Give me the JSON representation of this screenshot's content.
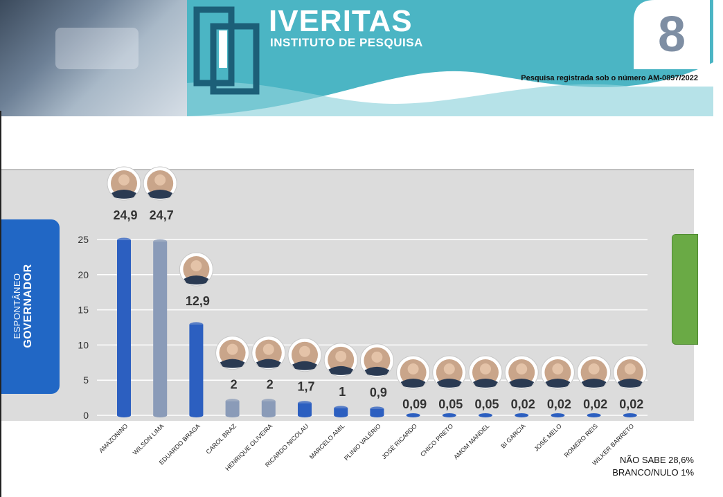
{
  "header": {
    "logo_title": "IVERITAS",
    "logo_subtitle": "INSTITUTO DE PESQUISA",
    "page_number": "8",
    "registration": "Pesquisa registrada sob o número AM-0897/2022",
    "colors": {
      "teal": "#4bb5c4",
      "dark_teal": "#1c5f78",
      "number": "#7e8ea3"
    }
  },
  "side_tab": {
    "line1": "ESPONTÂNEO",
    "line2": "GOVERNADOR",
    "color": "#2167c5"
  },
  "notes": {
    "nao_sabe": "NÃO SABE 28,6%",
    "branco_nulo": "BRANCO/NULO 1%"
  },
  "chart_data": {
    "type": "bar",
    "title": "",
    "xlabel": "",
    "ylabel": "",
    "ylim": [
      0,
      25
    ],
    "yticks": [
      "0",
      "5",
      "10",
      "15",
      "20",
      "25"
    ],
    "categories": [
      "AMAZONINO",
      "WILSON LIMA",
      "EDUARDO BRAGA",
      "CAROL BRAZ",
      "HENRIQUE OLIVEIRA",
      "RICARDO NICOLAU",
      "MARCELO AMIL",
      "PLINIO VALÉRIO",
      "JOSÉ RICARDO",
      "CHICO PRETO",
      "AMOM MANDEL",
      "BI GARCIA",
      "JOSÉ MELO",
      "ROMERO REIS",
      "WILKER BARRETO"
    ],
    "values": [
      24.9,
      24.7,
      12.9,
      2,
      2,
      1.7,
      1,
      0.9,
      0.09,
      0.05,
      0.05,
      0.02,
      0.02,
      0.02,
      0.02
    ],
    "labels": [
      "24,9",
      "24,7",
      "12,9",
      "2",
      "2",
      "1,7",
      "1",
      "0,9",
      "0,09",
      "0,05",
      "0,05",
      "0,02",
      "0,02",
      "0,02",
      "0,02"
    ],
    "bar_colors": [
      "#2c5fc0",
      "#8a9bb8",
      "#2c5fc0",
      "#8a9bb8",
      "#8a9bb8",
      "#2c5fc0",
      "#2c5fc0",
      "#2c5fc0",
      "#2c5fc0",
      "#2c5fc0",
      "#2c5fc0",
      "#2c5fc0",
      "#2c5fc0",
      "#2c5fc0",
      "#2c5fc0"
    ],
    "grid": true
  }
}
